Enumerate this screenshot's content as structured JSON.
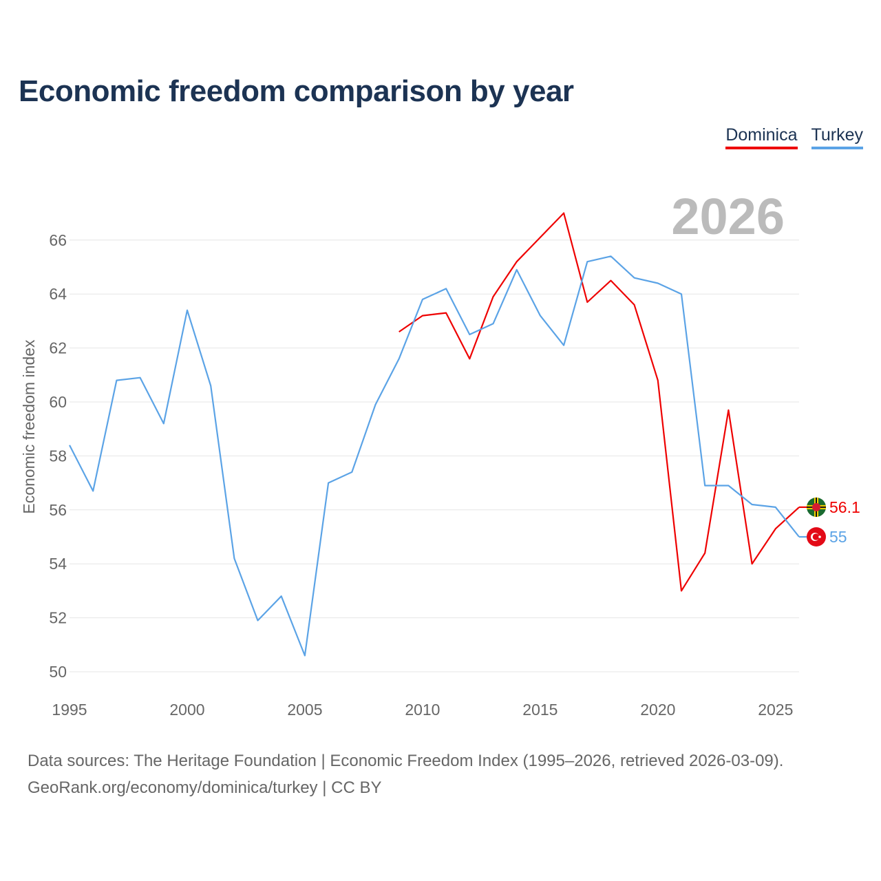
{
  "title": "Economic freedom comparison by year",
  "legend": {
    "dominica": "Dominica",
    "turkey": "Turkey"
  },
  "colors": {
    "dominica": "#ee0000",
    "turkey": "#5ba3e6",
    "year_watermark": "#bbbbbb"
  },
  "year_watermark": "2026",
  "footer": {
    "line1": "Data sources: The Heritage Foundation | Economic Freedom Index (1995–2026, retrieved 2026-03-09).",
    "line2": "GeoRank.org/economy/dominica/turkey | CC BY"
  },
  "chart_data": {
    "type": "line",
    "title": "Economic freedom comparison by year",
    "xlabel": "",
    "ylabel": "Economic freedom index",
    "xlim": [
      1995,
      2026
    ],
    "ylim": [
      50,
      67.5
    ],
    "grid": true,
    "legend_position": "top-right",
    "x_ticks": [
      1995,
      2000,
      2005,
      2010,
      2015,
      2020,
      2025
    ],
    "y_ticks": [
      50,
      52,
      54,
      56,
      58,
      60,
      62,
      64,
      66
    ],
    "series": [
      {
        "name": "Dominica",
        "key": "dominica",
        "x": [
          2009,
          2010,
          2011,
          2012,
          2013,
          2014,
          2015,
          2016,
          2017,
          2018,
          2019,
          2020,
          2021,
          2022,
          2023,
          2024,
          2025,
          2026
        ],
        "values": [
          62.6,
          63.2,
          63.3,
          61.6,
          63.9,
          65.2,
          66.1,
          67.0,
          63.7,
          64.5,
          63.6,
          60.8,
          53.0,
          54.4,
          59.7,
          54.0,
          55.3,
          56.1
        ],
        "end_label": "56.1"
      },
      {
        "name": "Turkey",
        "key": "turkey",
        "x": [
          1995,
          1996,
          1997,
          1998,
          1999,
          2000,
          2001,
          2002,
          2003,
          2004,
          2005,
          2006,
          2007,
          2008,
          2009,
          2010,
          2011,
          2012,
          2013,
          2014,
          2015,
          2016,
          2017,
          2018,
          2019,
          2020,
          2021,
          2022,
          2023,
          2024,
          2025,
          2026
        ],
        "values": [
          58.4,
          56.7,
          60.8,
          60.9,
          59.2,
          63.4,
          60.6,
          54.2,
          51.9,
          52.8,
          50.6,
          57.0,
          57.4,
          59.9,
          61.6,
          63.8,
          64.2,
          62.5,
          62.9,
          64.9,
          63.2,
          62.1,
          65.2,
          65.4,
          64.6,
          64.4,
          64.0,
          56.9,
          56.9,
          56.2,
          56.1,
          55.0
        ],
        "end_label": "55"
      }
    ]
  }
}
